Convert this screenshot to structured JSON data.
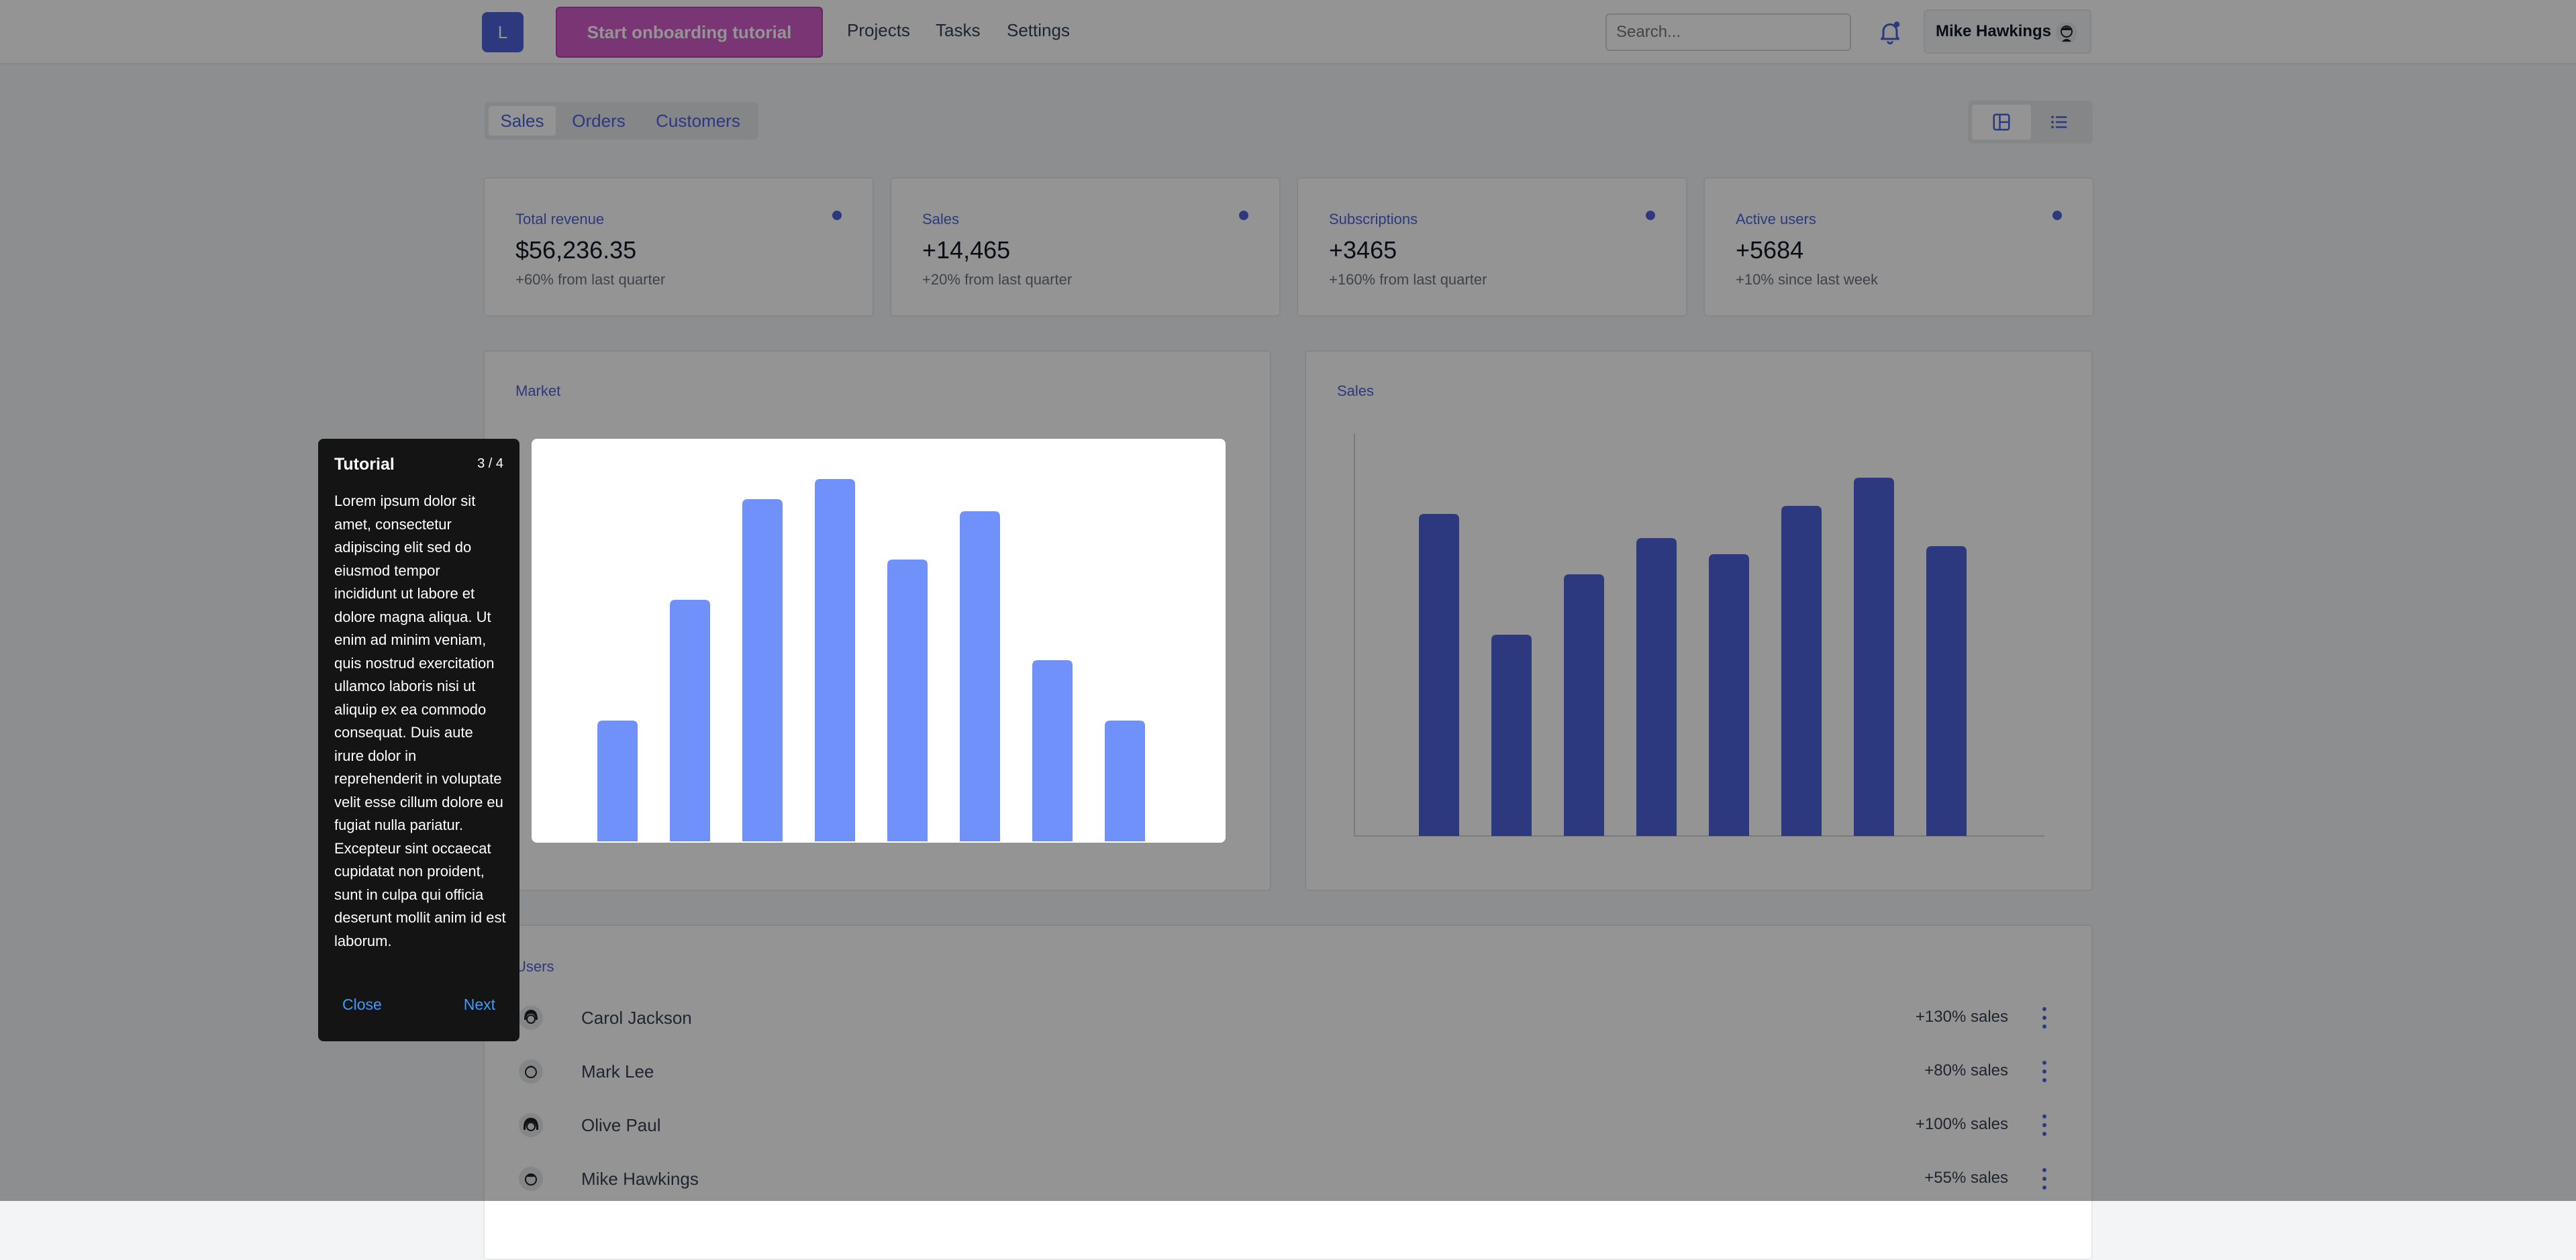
{
  "header": {
    "logo_letter": "L",
    "onboarding_button": "Start onboarding tutorial",
    "nav": [
      "Projects",
      "Tasks",
      "Settings"
    ],
    "search_placeholder": "Search...",
    "user_name": "Mike Hawkings"
  },
  "tabs": [
    "Sales",
    "Orders",
    "Customers"
  ],
  "stats": [
    {
      "label": "Total revenue",
      "value": "$56,236.35",
      "sub": "+60% from last quarter"
    },
    {
      "label": "Sales",
      "value": "+14,465",
      "sub": "+20% from last quarter"
    },
    {
      "label": "Subscriptions",
      "value": "+3465",
      "sub": "+160% from last quarter"
    },
    {
      "label": "Active users",
      "value": "+5684",
      "sub": "+10% since last week"
    }
  ],
  "charts": {
    "market": {
      "title": "Market",
      "values": [
        30,
        60,
        85,
        90,
        70,
        82,
        45,
        30
      ],
      "ymax": 100,
      "color": "#7090fa"
    },
    "sales": {
      "title": "Sales",
      "values": [
        80,
        50,
        65,
        74,
        70,
        82,
        89,
        72
      ],
      "ymax": 100,
      "color": "#4f63d9"
    }
  },
  "users": {
    "title": "Users",
    "rows": [
      {
        "name": "Carol Jackson",
        "sales": "+130% sales"
      },
      {
        "name": "Mark Lee",
        "sales": "+80% sales"
      },
      {
        "name": "Olive Paul",
        "sales": "+100% sales"
      },
      {
        "name": "Mike Hawkings",
        "sales": "+55% sales"
      }
    ]
  },
  "tutorial": {
    "title": "Tutorial",
    "step": "3 / 4",
    "body": "Lorem ipsum dolor sit amet, consectetur adipiscing elit sed do eiusmod tempor incididunt ut labore et dolore magna aliqua. Ut enim ad minim veniam, quis nostrud exercitation ullamco laboris nisi ut aliquip ex ea commodo consequat. Duis aute irure dolor in reprehenderit in voluptate velit esse cillum dolore eu fugiat nulla pariatur. Excepteur sint occaecat cupidatat non proident, sunt in culpa qui officia deserunt mollit anim id est laborum.",
    "close": "Close",
    "next": "Next"
  }
}
